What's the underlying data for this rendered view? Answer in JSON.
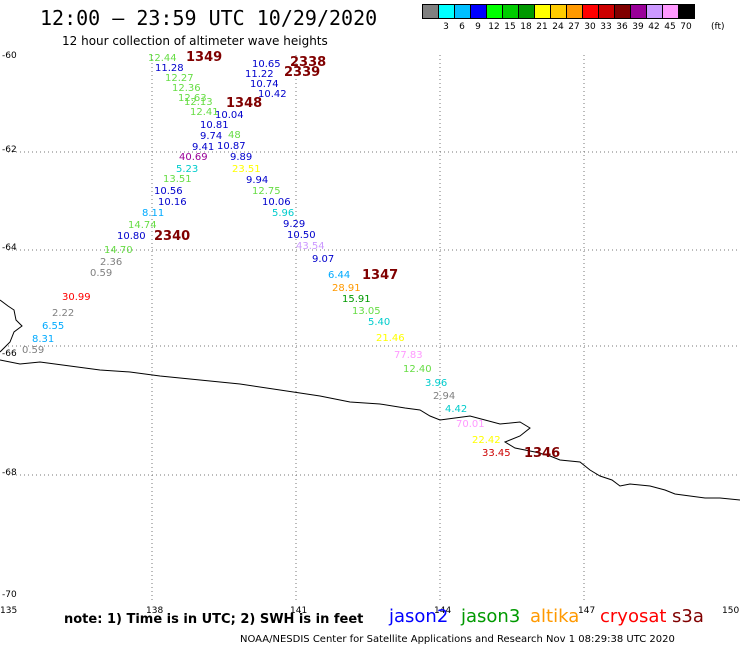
{
  "header": {
    "title": "12:00 – 23:59 UTC 10/29/2020",
    "subtitle": "12 hour collection of altimeter wave heights"
  },
  "legend": {
    "colors": [
      "#808080",
      "#00ffff",
      "#00bfff",
      "#0000ff",
      "#00ff00",
      "#00cc00",
      "#009900",
      "#ffff00",
      "#ffcc00",
      "#ff9900",
      "#ff0000",
      "#cc0000",
      "#800000",
      "#990099",
      "#cc99ff",
      "#ff99ff",
      "#000000"
    ],
    "labels": [
      "3",
      "6",
      "9",
      "12",
      "15",
      "18",
      "21",
      "24",
      "27",
      "30",
      "33",
      "36",
      "39",
      "42",
      "45",
      "70"
    ],
    "unit": "(ft)"
  },
  "axes": {
    "lat_labels": [
      "-60",
      "-62",
      "-64",
      "-66",
      "-68",
      "-70"
    ],
    "lon_labels": [
      "135",
      "138",
      "141",
      "144",
      "147",
      "150"
    ]
  },
  "observations": [
    {
      "t": "12.44",
      "c": "#66dd44"
    },
    {
      "t": "1349",
      "c": "#800000"
    },
    {
      "t": "11.28",
      "c": "#0000cc"
    },
    {
      "t": "12.27",
      "c": "#66dd44"
    },
    {
      "t": "12.36",
      "c": "#66dd44"
    },
    {
      "t": "12.63",
      "c": "#66dd44"
    },
    {
      "t": "12.13",
      "c": "#66dd44"
    },
    {
      "t": "12.41",
      "c": "#66dd44"
    },
    {
      "t": "10.81",
      "c": "#0000cc"
    },
    {
      "t": "9.74",
      "c": "#0000cc"
    },
    {
      "t": "9.41",
      "c": "#0000cc"
    },
    {
      "t": "40.69",
      "c": "#990099"
    },
    {
      "t": "5.23",
      "c": "#00cccc"
    },
    {
      "t": "13.51",
      "c": "#66dd44"
    },
    {
      "t": "10.56",
      "c": "#0000cc"
    },
    {
      "t": "10.16",
      "c": "#0000cc"
    },
    {
      "t": "8.11",
      "c": "#00aaff"
    },
    {
      "t": "14.74",
      "c": "#66dd44"
    },
    {
      "t": "10.80",
      "c": "#0000cc"
    },
    {
      "t": "2340",
      "c": "#800000"
    },
    {
      "t": "14.70",
      "c": "#66dd44"
    },
    {
      "t": "2.36",
      "c": "#808080"
    },
    {
      "t": "0.59",
      "c": "#808080"
    },
    {
      "t": "30.99",
      "c": "#ff0000"
    },
    {
      "t": "2.22",
      "c": "#808080"
    },
    {
      "t": "6.55",
      "c": "#00aaff"
    },
    {
      "t": "8.31",
      "c": "#00aaff"
    },
    {
      "t": "0.59",
      "c": "#808080"
    },
    {
      "t": "10.65",
      "c": "#0000cc"
    },
    {
      "t": "2338",
      "c": "#800000"
    },
    {
      "t": "11.22",
      "c": "#0000cc"
    },
    {
      "t": "2339",
      "c": "#800000"
    },
    {
      "t": "10.74",
      "c": "#0000cc"
    },
    {
      "t": "10.42",
      "c": "#0000cc"
    },
    {
      "t": "1348",
      "c": "#800000"
    },
    {
      "t": "10.04",
      "c": "#0000cc"
    },
    {
      "t": "48",
      "c": "#66dd44"
    },
    {
      "t": "10.87",
      "c": "#0000cc"
    },
    {
      "t": "9.89",
      "c": "#0000cc"
    },
    {
      "t": "23.51",
      "c": "#ffff00"
    },
    {
      "t": "9.94",
      "c": "#0000cc"
    },
    {
      "t": "12.75",
      "c": "#66dd44"
    },
    {
      "t": "10.06",
      "c": "#0000cc"
    },
    {
      "t": "5.96",
      "c": "#00cccc"
    },
    {
      "t": "9.29",
      "c": "#0000cc"
    },
    {
      "t": "10.50",
      "c": "#0000cc"
    },
    {
      "t": "43.54",
      "c": "#cc99ff"
    },
    {
      "t": "9.07",
      "c": "#0000cc"
    },
    {
      "t": "6.44",
      "c": "#00aaff"
    },
    {
      "t": "1347",
      "c": "#800000"
    },
    {
      "t": "28.91",
      "c": "#ff9900"
    },
    {
      "t": "15.91",
      "c": "#009900"
    },
    {
      "t": "13.05",
      "c": "#66dd44"
    },
    {
      "t": "5.40",
      "c": "#00cccc"
    },
    {
      "t": "21.46",
      "c": "#ffff00"
    },
    {
      "t": "77.83",
      "c": "#ff99ff"
    },
    {
      "t": "12.40",
      "c": "#66dd44"
    },
    {
      "t": "3.96",
      "c": "#00cccc"
    },
    {
      "t": "2.94",
      "c": "#808080"
    },
    {
      "t": "4.42",
      "c": "#00cccc"
    },
    {
      "t": "70.01",
      "c": "#ff99ff"
    },
    {
      "t": "22.42",
      "c": "#ffff00"
    },
    {
      "t": "33.45",
      "c": "#cc0000"
    },
    {
      "t": "1346",
      "c": "#800000"
    }
  ],
  "note": "note: 1) Time is in UTC; 2) SWH is in feet",
  "satellites": [
    {
      "name": "jason2",
      "color": "#0000ff"
    },
    {
      "name": "jason3",
      "color": "#009900"
    },
    {
      "name": "altika",
      "color": "#ff9900"
    },
    {
      "name": "cryosat",
      "color": "#ff0000"
    },
    {
      "name": "s3a",
      "color": "#800000"
    }
  ],
  "footer": "NOAA/NESDIS Center for Satellite Applications and Research    Nov  1 08:29:38 UTC 2020"
}
